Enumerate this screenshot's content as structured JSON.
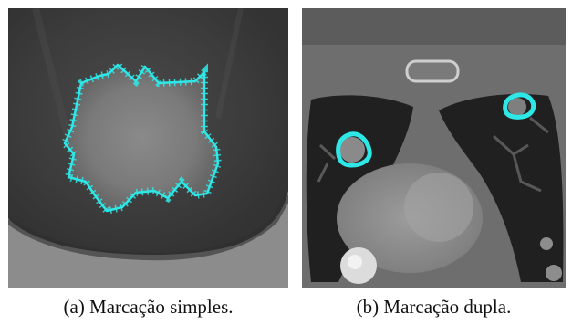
{
  "figure": {
    "panels": [
      {
        "id": "a",
        "caption": "(a) Marcação simples.",
        "content": "close-up ct lung nodule with segmentation contour",
        "contour_color": "#2ee8e8"
      },
      {
        "id": "b",
        "caption": "(b) Marcação dupla.",
        "content": "axial chest ct slice with two marked nodules",
        "contour_color": "#2ee8e8"
      }
    ]
  }
}
